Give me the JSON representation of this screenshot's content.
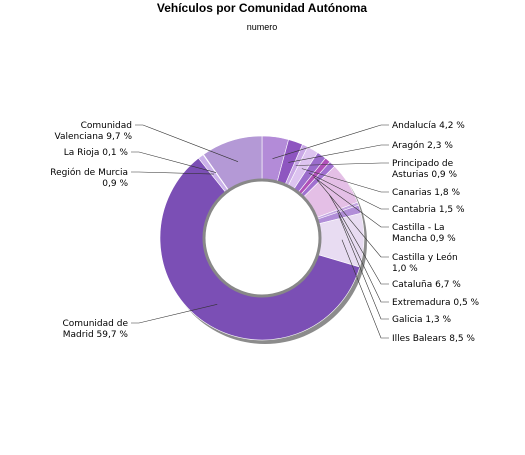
{
  "chart_data": {
    "type": "pie",
    "variant": "donut",
    "title": "Vehículos por Comunidad Autónoma",
    "subtitle": "numero",
    "slices": [
      {
        "name": "Andalucía",
        "label": [
          "Andalucía 4,2 %"
        ],
        "value": 4.2,
        "color": "#b38bd8"
      },
      {
        "name": "Aragón",
        "label": [
          "Aragón 2,3 %"
        ],
        "value": 2.3,
        "color": "#8e56c0"
      },
      {
        "name": "Principado de Asturias",
        "label": [
          "Principado de",
          "Asturias 0,9 %"
        ],
        "value": 0.9,
        "color": "#c9a8e6"
      },
      {
        "name": "Canarias",
        "label": [
          "Canarias 1,8 %"
        ],
        "value": 1.8,
        "color": "#ddc4f0"
      },
      {
        "name": "Cantabria",
        "label": [
          "Cantabria 1,5 %"
        ],
        "value": 1.5,
        "color": "#9b6dcc"
      },
      {
        "name": "Castilla - La Mancha",
        "label": [
          "Castilla - La",
          "Mancha 0,9 %"
        ],
        "value": 0.9,
        "color": "#b050b8"
      },
      {
        "name": "Castilla y León",
        "label": [
          "Castilla y León",
          "1,0 %"
        ],
        "value": 1.0,
        "color": "#a070d0"
      },
      {
        "name": "Cataluña",
        "label": [
          "Cataluña 6,7 %"
        ],
        "value": 6.7,
        "color": "#e4bfe6"
      },
      {
        "name": "Extremadura",
        "label": [
          "Extremadura 0,5 %"
        ],
        "value": 0.5,
        "color": "#c4a6e2"
      },
      {
        "name": "Galicia",
        "label": [
          "Galicia 1,3 %"
        ],
        "value": 1.3,
        "color": "#b18ed8"
      },
      {
        "name": "Illes Balears",
        "label": [
          "Illes Balears 8,5 %"
        ],
        "value": 8.5,
        "color": "#e8dcf2"
      },
      {
        "name": "Comunidad de Madrid",
        "label": [
          "Comunidad de",
          "Madrid 59,7 %"
        ],
        "value": 59.7,
        "color": "#7b4fb5"
      },
      {
        "name": "Región de Murcia",
        "label": [
          "Región de Murcia",
          "0,9 %"
        ],
        "value": 0.9,
        "color": "#cbb2ea"
      },
      {
        "name": "La Rioja",
        "label": [
          "La Rioja 0,1 %"
        ],
        "value": 0.1,
        "color": "#9a78c8"
      },
      {
        "name": "Comunidad Valenciana",
        "label": [
          "Comunidad",
          "Valenciana 9,7 %"
        ],
        "value": 9.7,
        "color": "#b499d6"
      }
    ]
  }
}
